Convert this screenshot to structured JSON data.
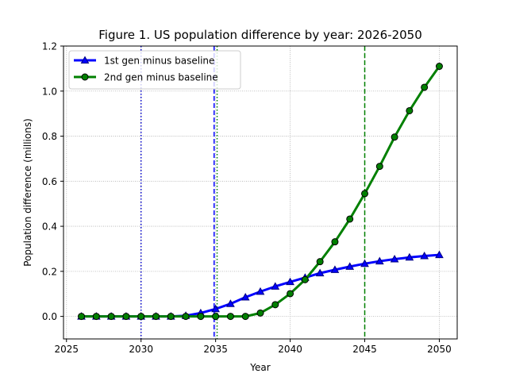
{
  "chart_data": {
    "type": "line",
    "title": "Figure 1. US population difference by year: 2026-2050",
    "xlabel": "Year",
    "ylabel": "Population difference (millions)",
    "xlim": [
      2024.8,
      2051.2
    ],
    "ylim": [
      -0.1,
      1.2
    ],
    "xticks": [
      2025,
      2030,
      2035,
      2040,
      2045,
      2050
    ],
    "yticks": [
      0.0,
      0.2,
      0.4,
      0.6,
      0.8,
      1.0,
      1.2
    ],
    "xtick_labels": [
      "2025",
      "2030",
      "2035",
      "2040",
      "2045",
      "2050"
    ],
    "ytick_labels": [
      "0.0",
      "0.2",
      "0.4",
      "0.6",
      "0.8",
      "1.0",
      "1.2"
    ],
    "grid": true,
    "legend_position": "upper-left",
    "x": [
      2026,
      2027,
      2028,
      2029,
      2030,
      2031,
      2032,
      2033,
      2034,
      2035,
      2036,
      2037,
      2038,
      2039,
      2040,
      2041,
      2042,
      2043,
      2044,
      2045,
      2046,
      2047,
      2048,
      2049,
      2050
    ],
    "series": [
      {
        "name": "1st gen minus baseline",
        "color": "#0000ff",
        "marker": "triangle",
        "values": [
          0.0,
          0.0,
          0.0,
          0.0,
          0.0,
          0.0,
          0.0,
          0.003,
          0.015,
          0.033,
          0.056,
          0.085,
          0.11,
          0.133,
          0.153,
          0.172,
          0.192,
          0.207,
          0.221,
          0.234,
          0.245,
          0.254,
          0.262,
          0.268,
          0.273
        ]
      },
      {
        "name": "2nd gen minus baseline",
        "color": "#008000",
        "marker": "circle",
        "values": [
          0.0,
          0.0,
          0.0,
          0.0,
          0.0,
          0.0,
          0.0,
          0.0,
          0.0,
          0.0,
          0.0,
          0.0,
          0.015,
          0.052,
          0.101,
          0.163,
          0.243,
          0.331,
          0.432,
          0.545,
          0.666,
          0.796,
          0.913,
          1.017,
          1.11
        ]
      }
    ],
    "vlines": [
      {
        "x": 2030,
        "color": "#0000cd",
        "style": "dotted"
      },
      {
        "x": 2034.9,
        "color": "#0000ff",
        "style": "dashed"
      },
      {
        "x": 2035.1,
        "color": "#008000",
        "style": "dotted"
      },
      {
        "x": 2045,
        "color": "#008000",
        "style": "dashed"
      }
    ]
  }
}
